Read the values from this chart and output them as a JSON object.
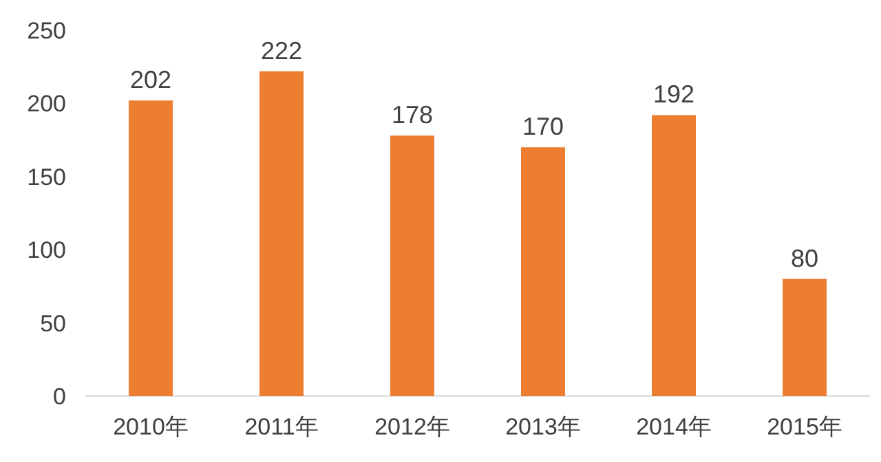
{
  "chart_data": {
    "type": "bar",
    "categories": [
      "2010年",
      "2011年",
      "2012年",
      "2013年",
      "2014年",
      "2015年"
    ],
    "values": [
      202,
      222,
      178,
      170,
      192,
      80
    ],
    "color": "#ed7d31",
    "ylim": [
      0,
      250
    ],
    "yticks": [
      0,
      50,
      100,
      150,
      200,
      250
    ],
    "data_labels": true
  }
}
